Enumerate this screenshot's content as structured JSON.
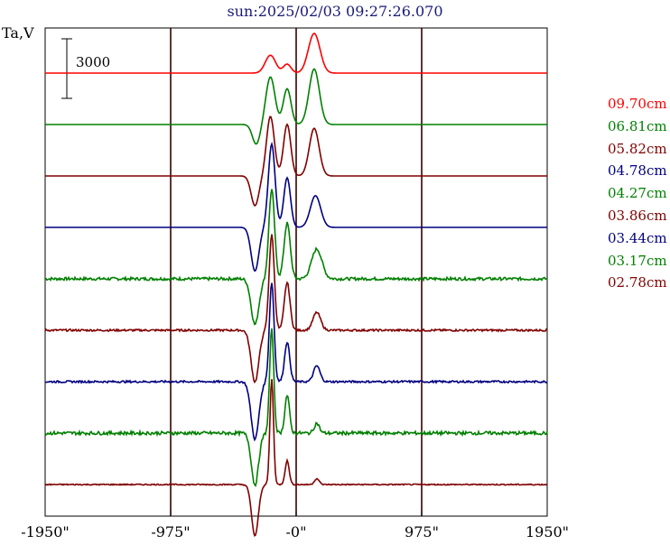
{
  "chart_data": {
    "type": "line",
    "title": "sun:2025/02/03 09:27:26.070",
    "ylabel": "Ta,V",
    "scale_bar": {
      "label": "3000",
      "value": 3000
    },
    "xlim": [
      -1950,
      1950
    ],
    "x_ticks": [
      {
        "value": -1950,
        "label": "-1950\""
      },
      {
        "value": -975,
        "label": "-975\""
      },
      {
        "value": 0,
        "label": "-0\""
      },
      {
        "value": 975,
        "label": "975\""
      },
      {
        "value": 1950,
        "label": "1950\""
      }
    ],
    "vertical_grid": [
      -975,
      0,
      975
    ],
    "grid": false,
    "legend_position": "right",
    "series": [
      {
        "name": "09.70cm",
        "color": "#ff0000",
        "peaks": [
          {
            "x": -200,
            "amp": 900,
            "w": 40
          },
          {
            "x": -70,
            "amp": 450,
            "w": 30
          },
          {
            "x": 140,
            "amp": 2000,
            "w": 45
          }
        ],
        "dip": {
          "x": -310,
          "amp": 0,
          "w": 30
        },
        "noise": 0
      },
      {
        "name": "06.81cm",
        "color": "#008000",
        "peaks": [
          {
            "x": -200,
            "amp": 2400,
            "w": 35
          },
          {
            "x": -70,
            "amp": 1800,
            "w": 30
          },
          {
            "x": 140,
            "amp": 2800,
            "w": 40
          }
        ],
        "dip": {
          "x": -310,
          "amp": -1000,
          "w": 30
        },
        "noise": 0
      },
      {
        "name": "05.82cm",
        "color": "#800000",
        "peaks": [
          {
            "x": -200,
            "amp": 3000,
            "w": 30
          },
          {
            "x": -70,
            "amp": 2600,
            "w": 28
          },
          {
            "x": 140,
            "amp": 2400,
            "w": 38
          }
        ],
        "dip": {
          "x": -320,
          "amp": -1500,
          "w": 30
        },
        "noise": 0
      },
      {
        "name": "04.78cm",
        "color": "#000080",
        "peaks": [
          {
            "x": -190,
            "amp": 4200,
            "w": 26
          },
          {
            "x": -70,
            "amp": 2500,
            "w": 26
          },
          {
            "x": 150,
            "amp": 1600,
            "w": 40
          }
        ],
        "dip": {
          "x": -320,
          "amp": -2200,
          "w": 30
        },
        "noise": 0
      },
      {
        "name": "04.27cm",
        "color": "#008000",
        "peaks": [
          {
            "x": -190,
            "amp": 4500,
            "w": 22
          },
          {
            "x": -70,
            "amp": 2800,
            "w": 24
          },
          {
            "x": 160,
            "amp": 1500,
            "w": 40
          }
        ],
        "dip": {
          "x": -320,
          "amp": -2300,
          "w": 30
        },
        "noise": 150
      },
      {
        "name": "03.86cm",
        "color": "#800000",
        "peaks": [
          {
            "x": -190,
            "amp": 4800,
            "w": 20
          },
          {
            "x": -70,
            "amp": 2400,
            "w": 22
          },
          {
            "x": 160,
            "amp": 900,
            "w": 30
          }
        ],
        "dip": {
          "x": -320,
          "amp": -2600,
          "w": 30
        },
        "noise": 100
      },
      {
        "name": "03.44cm",
        "color": "#000080",
        "peaks": [
          {
            "x": -190,
            "amp": 5000,
            "w": 18
          },
          {
            "x": -70,
            "amp": 2000,
            "w": 20
          },
          {
            "x": 160,
            "amp": 800,
            "w": 25
          }
        ],
        "dip": {
          "x": -320,
          "amp": -2900,
          "w": 30
        },
        "noise": 100
      },
      {
        "name": "03.17cm",
        "color": "#008000",
        "peaks": [
          {
            "x": -190,
            "amp": 5200,
            "w": 16
          },
          {
            "x": -70,
            "amp": 1900,
            "w": 18
          },
          {
            "x": 160,
            "amp": 500,
            "w": 20
          }
        ],
        "dip": {
          "x": -320,
          "amp": -2600,
          "w": 28
        },
        "noise": 170
      },
      {
        "name": "02.78cm",
        "color": "#800000",
        "peaks": [
          {
            "x": -190,
            "amp": 5300,
            "w": 14
          },
          {
            "x": -70,
            "amp": 1200,
            "w": 16
          },
          {
            "x": 160,
            "amp": 300,
            "w": 18
          }
        ],
        "dip": {
          "x": -320,
          "amp": -2600,
          "w": 26
        },
        "noise": 60
      }
    ]
  }
}
